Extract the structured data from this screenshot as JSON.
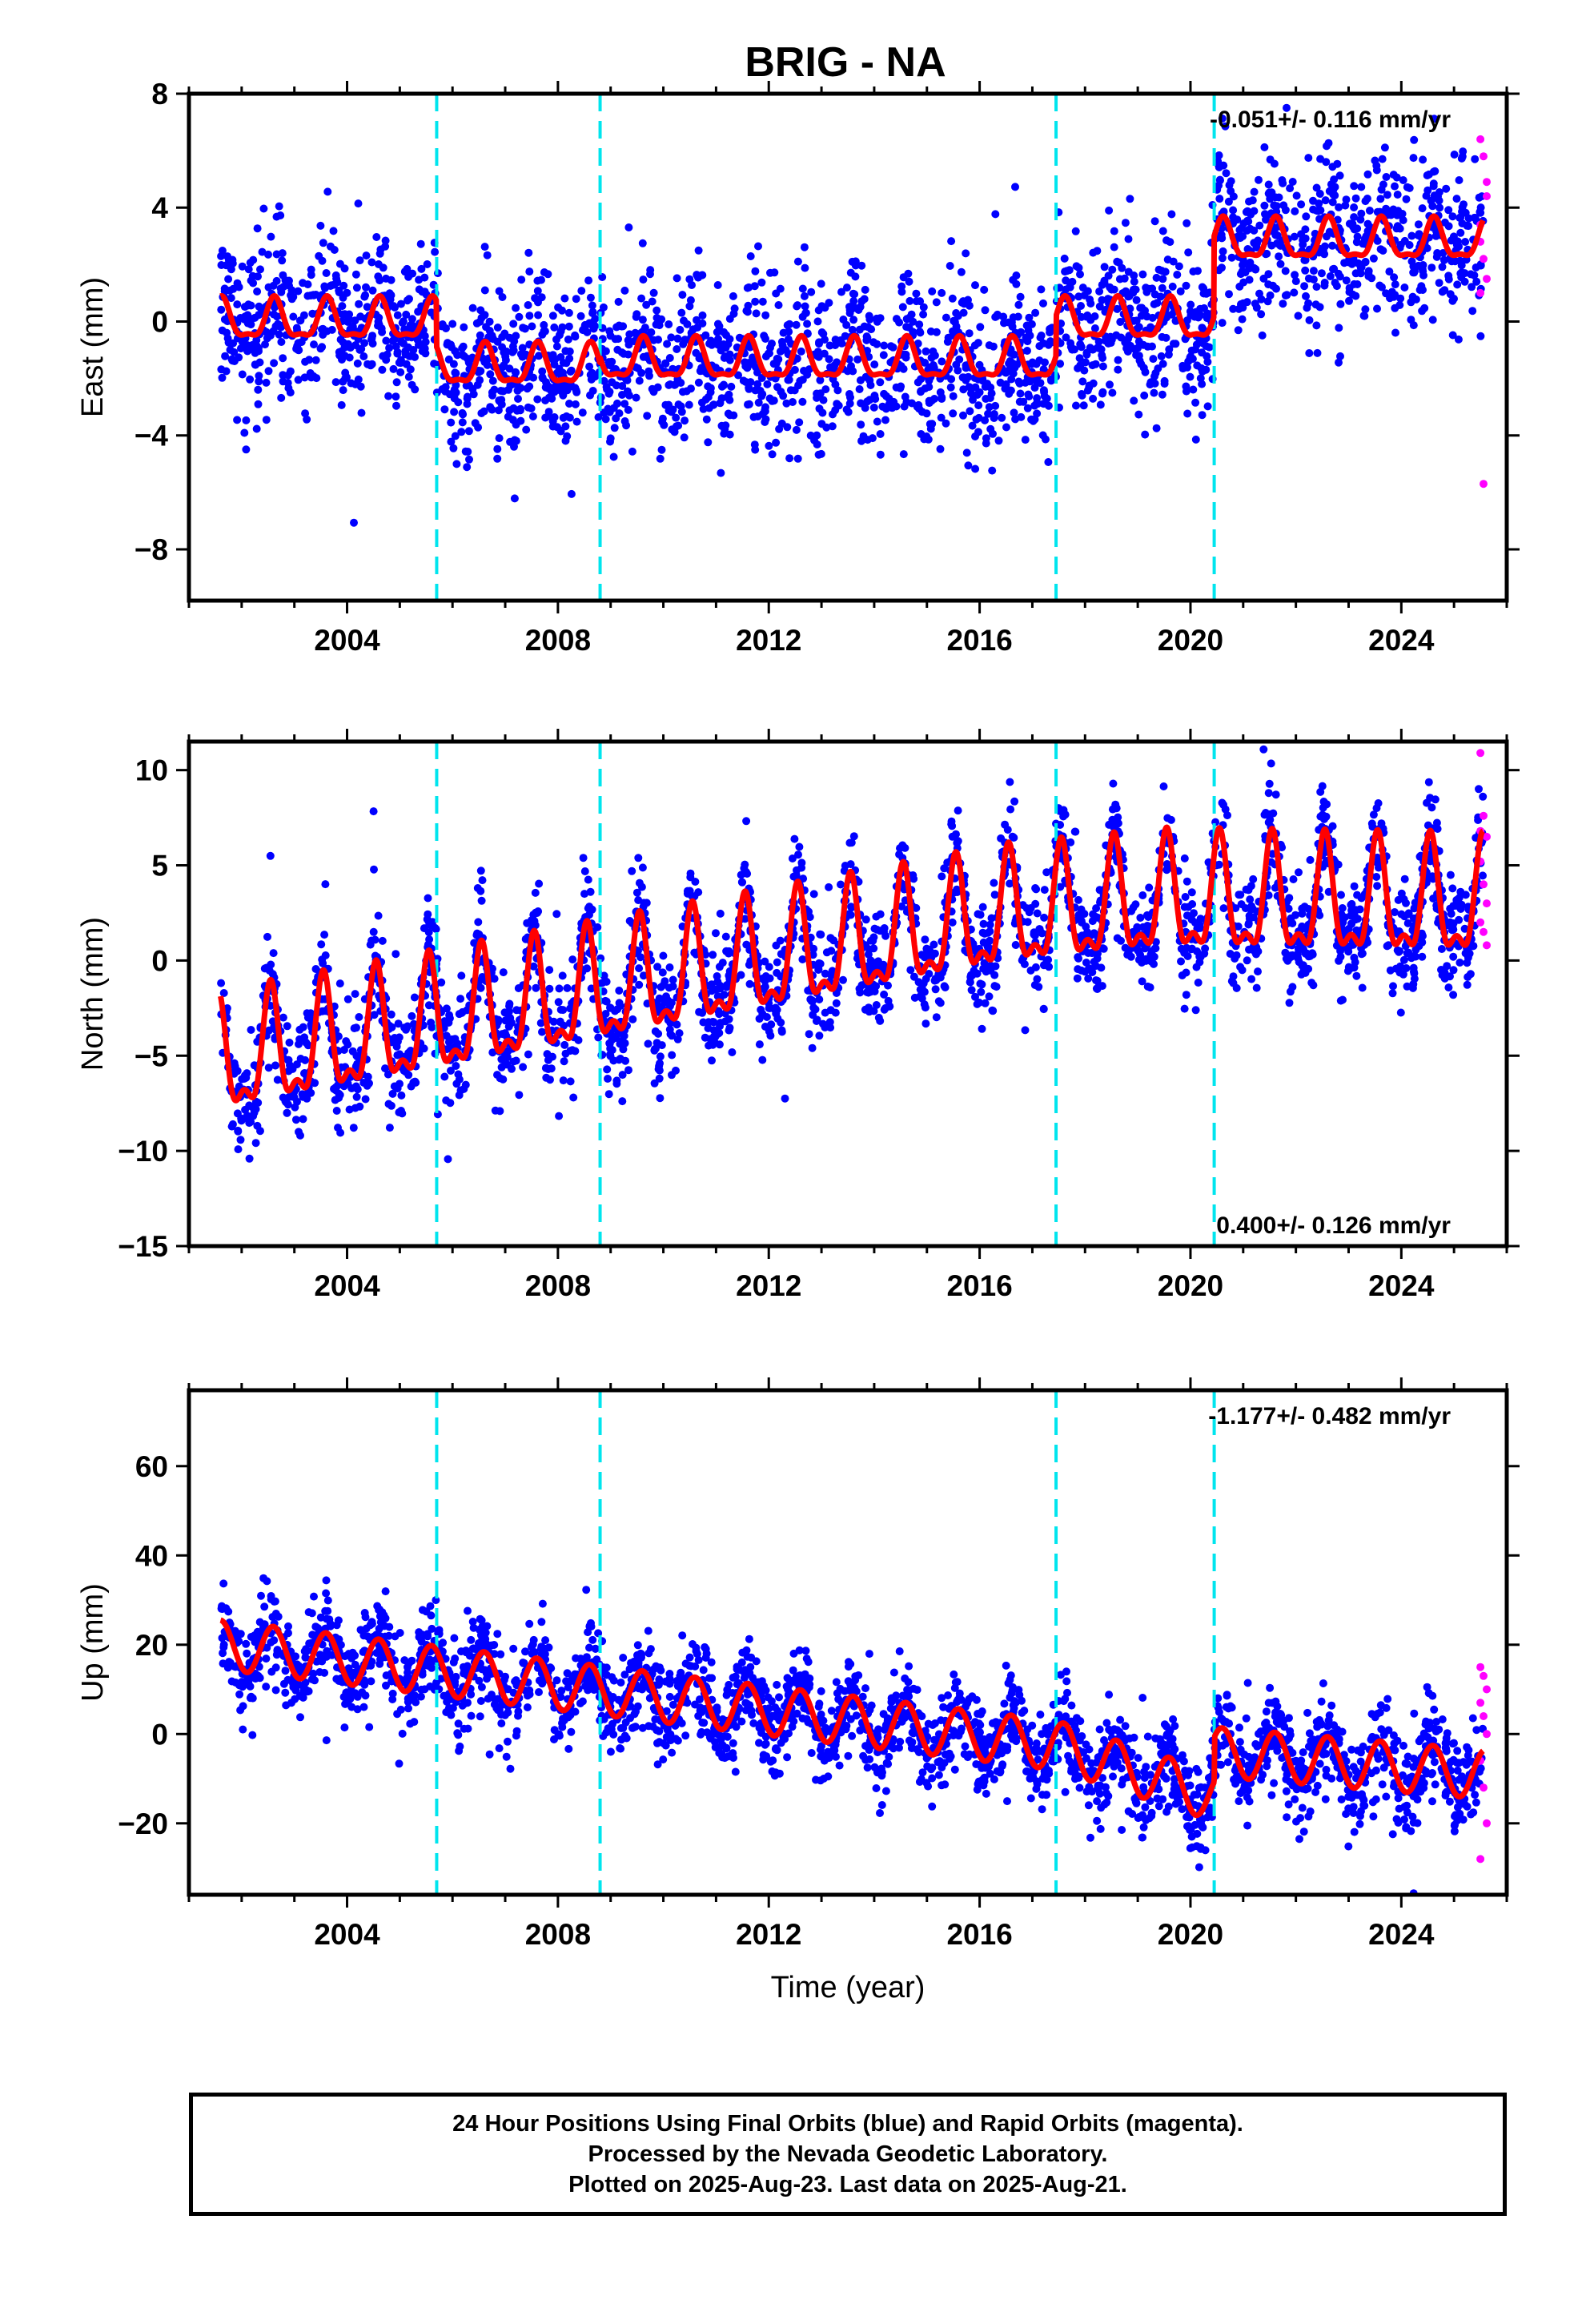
{
  "figure": {
    "title": "BRIG - NA",
    "footer": [
      "24 Hour Positions Using Final Orbits (blue) and Rapid Orbits (magenta).",
      "Processed by the Nevada Geodetic Laboratory.",
      "Plotted on 2025-Aug-23. Last data on 2025-Aug-21."
    ]
  },
  "chart_data": [
    {
      "type": "scatter",
      "component": "east",
      "ylabel": "East (mm)",
      "xlabel": "",
      "xlim": [
        2001.0,
        2026.0
      ],
      "ylim": [
        -9.8,
        8.0
      ],
      "xticks": [
        2004,
        2008,
        2012,
        2016,
        2020,
        2024
      ],
      "yticks": [
        -8,
        -4,
        0,
        4,
        8
      ],
      "yticklabels": [
        "−8",
        "−4",
        "0",
        "4",
        "8"
      ],
      "rate_text": "-0.051+/- 0.116 mm/yr",
      "rate_position": "top-right",
      "equipment_changes": [
        2005.7,
        2008.8,
        2017.45,
        2020.45
      ],
      "final_orbits_color": "#0000ff",
      "rapid_orbits_color": "#ff00ff",
      "model_color": "#ff0000",
      "change_line_color": "#00e5ee",
      "data_span": [
        2001.6,
        2025.55
      ],
      "rapid_span": [
        2025.5,
        2025.62
      ],
      "model": {
        "offsets": [
          [
            2001.6,
            0.0
          ],
          [
            2005.7,
            -1.6
          ],
          [
            2008.8,
            -1.4
          ],
          [
            2017.45,
            0.0
          ],
          [
            2020.45,
            2.8
          ]
        ],
        "amplitude": 0.9,
        "peak_phase": 0.62,
        "harmonic": 0.35
      },
      "scatter_sigma": 1.4,
      "rapid_points": [
        6.4,
        5.8,
        4.9,
        3.4,
        2.2,
        1.5,
        1.0,
        -5.7,
        4.4,
        2.8
      ]
    },
    {
      "type": "scatter",
      "component": "north",
      "ylabel": "North (mm)",
      "xlabel": "",
      "xlim": [
        2001.0,
        2026.0
      ],
      "ylim": [
        -15.0,
        11.5
      ],
      "xticks": [
        2004,
        2008,
        2012,
        2016,
        2020,
        2024
      ],
      "yticks": [
        -15,
        -10,
        -5,
        0,
        5,
        10
      ],
      "yticklabels": [
        "−15",
        "−10",
        "−5",
        "0",
        "5",
        "10"
      ],
      "rate_text": "0.400+/- 0.126 mm/yr",
      "rate_position": "bottom-right",
      "equipment_changes": [
        2005.7,
        2008.8,
        2017.45,
        2020.45
      ],
      "final_orbits_color": "#0000ff",
      "rapid_orbits_color": "#ff00ff",
      "model_color": "#ff0000",
      "change_line_color": "#00e5ee",
      "data_span": [
        2001.6,
        2025.55
      ],
      "rapid_span": [
        2025.5,
        2025.62
      ],
      "model": {
        "trend_points": [
          [
            2001.6,
            -5.5
          ],
          [
            2016.5,
            2.2
          ],
          [
            2019.5,
            3.0
          ],
          [
            2025.55,
            2.8
          ]
        ],
        "amplitude": 4.0,
        "peak_phase": 0.55,
        "harmonic": 0.45
      },
      "scatter_sigma": 1.5,
      "rapid_points": [
        10.9,
        7.6,
        6.5,
        5.2,
        4.0,
        3.0,
        2.0,
        1.5,
        0.8,
        6.8
      ]
    },
    {
      "type": "scatter",
      "component": "up",
      "ylabel": "Up (mm)",
      "xlabel": "Time (year)",
      "xlim": [
        2001.0,
        2026.0
      ],
      "ylim": [
        -36.0,
        77.0
      ],
      "xticks": [
        2004,
        2008,
        2012,
        2016,
        2020,
        2024
      ],
      "yticks": [
        -20,
        0,
        20,
        40,
        60
      ],
      "yticklabels": [
        "−20",
        "0",
        "20",
        "40",
        "60"
      ],
      "rate_text": "-1.177+/- 0.482 mm/yr",
      "rate_position": "top-right",
      "equipment_changes": [
        2005.7,
        2008.8,
        2017.45,
        2020.45
      ],
      "final_orbits_color": "#0000ff",
      "rapid_orbits_color": "#ff00ff",
      "model_color": "#ff0000",
      "change_line_color": "#00e5ee",
      "data_span": [
        2001.6,
        2025.55
      ],
      "rapid_span": [
        2025.5,
        2025.62
      ],
      "model": {
        "trend_points": [
          [
            2001.6,
            20.0
          ],
          [
            2017.45,
            -2.5
          ],
          [
            2020.45,
            -14.0
          ],
          [
            2020.46,
            -4.0
          ],
          [
            2025.55,
            -9.0
          ]
        ],
        "amplitude": 5.5,
        "peak_phase": 0.6,
        "harmonic": 0.0
      },
      "scatter_sigma": 5.0,
      "rapid_points": [
        15.0,
        13.0,
        10.0,
        7.0,
        4.0,
        0.0,
        -6.0,
        -12.0,
        -20.0,
        -28.0
      ]
    }
  ]
}
